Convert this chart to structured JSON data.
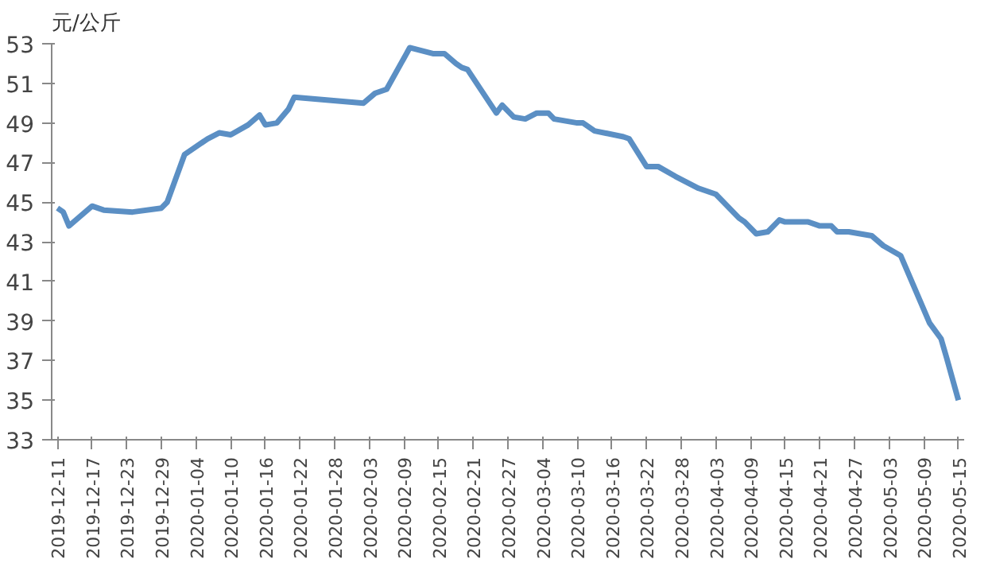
{
  "chart_data": {
    "type": "line",
    "ylabel": "元/公斤",
    "x": [
      "2019-12-11",
      "2019-12-12",
      "2019-12-13",
      "2019-12-17",
      "2019-12-19",
      "2019-12-24",
      "2019-12-29",
      "2019-12-30",
      "2020-01-02",
      "2020-01-06",
      "2020-01-08",
      "2020-01-10",
      "2020-01-13",
      "2020-01-15",
      "2020-01-16",
      "2020-01-18",
      "2020-01-20",
      "2020-01-21",
      "2020-02-02",
      "2020-02-04",
      "2020-02-06",
      "2020-02-10",
      "2020-02-14",
      "2020-02-16",
      "2020-02-18",
      "2020-02-19",
      "2020-02-20",
      "2020-02-25",
      "2020-02-26",
      "2020-02-28",
      "2020-03-01",
      "2020-03-03",
      "2020-03-05",
      "2020-03-06",
      "2020-03-10",
      "2020-03-11",
      "2020-03-13",
      "2020-03-18",
      "2020-03-19",
      "2020-03-22",
      "2020-03-24",
      "2020-03-27",
      "2020-03-29",
      "2020-03-31",
      "2020-04-03",
      "2020-04-07",
      "2020-04-08",
      "2020-04-10",
      "2020-04-12",
      "2020-04-14",
      "2020-04-15",
      "2020-04-19",
      "2020-04-21",
      "2020-04-23",
      "2020-04-24",
      "2020-04-26",
      "2020-04-30",
      "2020-05-02",
      "2020-05-05",
      "2020-05-10",
      "2020-05-12",
      "2020-05-13",
      "2020-05-15"
    ],
    "series": [
      {
        "color": "#5b8fc4",
        "values": [
          44.7,
          44.5,
          43.8,
          44.8,
          44.6,
          44.5,
          44.7,
          45.0,
          47.4,
          48.2,
          48.5,
          48.4,
          48.9,
          49.4,
          48.9,
          49.0,
          49.7,
          50.3,
          50.0,
          50.5,
          50.7,
          52.8,
          52.5,
          52.5,
          52.0,
          51.8,
          51.7,
          49.5,
          49.9,
          49.3,
          49.2,
          49.5,
          49.5,
          49.2,
          49.0,
          49.0,
          48.6,
          48.3,
          48.2,
          46.8,
          46.8,
          46.3,
          46.0,
          45.7,
          45.4,
          44.2,
          44.0,
          43.4,
          43.5,
          44.1,
          44.0,
          44.0,
          43.8,
          43.8,
          43.5,
          43.5,
          43.3,
          42.8,
          42.3,
          38.9,
          38.1,
          37.1,
          35.0
        ]
      }
    ],
    "xlim": [
      "2019-12-10",
      "2020-05-16"
    ],
    "xticks": [
      "2019-12-11",
      "2019-12-17",
      "2019-12-23",
      "2019-12-29",
      "2020-01-04",
      "2020-01-10",
      "2020-01-16",
      "2020-01-22",
      "2020-01-28",
      "2020-02-03",
      "2020-02-09",
      "2020-02-15",
      "2020-02-21",
      "2020-02-27",
      "2020-03-04",
      "2020-03-10",
      "2020-03-16",
      "2020-03-22",
      "2020-03-28",
      "2020-04-03",
      "2020-04-09",
      "2020-04-15",
      "2020-04-21",
      "2020-04-27",
      "2020-05-03",
      "2020-05-09",
      "2020-05-15"
    ],
    "ylim": [
      33,
      53
    ],
    "yticks": [
      33,
      35,
      37,
      39,
      41,
      43,
      45,
      47,
      49,
      51,
      53
    ],
    "grid": false,
    "marker": "none",
    "line_style": "solid"
  }
}
